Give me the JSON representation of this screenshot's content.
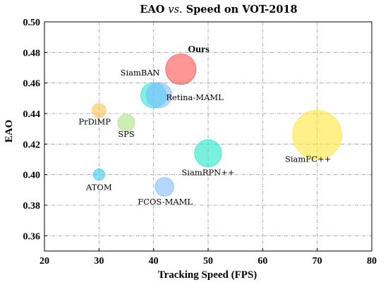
{
  "chart_data": {
    "type": "scatter",
    "title": "EAO vs. Speed on VOT-2018",
    "title_parts": {
      "pre": "EAO ",
      "vs": "vs.",
      "post": " Speed on VOT-2018"
    },
    "xlabel": "Tracking Speed (FPS)",
    "ylabel": "EAO",
    "xlim": [
      20,
      80
    ],
    "ylim": [
      0.35,
      0.5
    ],
    "xticks": [
      "20",
      "30",
      "40",
      "50",
      "60",
      "70",
      "80"
    ],
    "yticks": [
      "0.36",
      "0.38",
      "0.40",
      "0.42",
      "0.44",
      "0.46",
      "0.48",
      "0.50"
    ],
    "grid": true,
    "points": [
      {
        "name": "Ours",
        "x": 45,
        "y": 0.469,
        "size": 7.2,
        "color": "#ff4a4a",
        "bold": true
      },
      {
        "name": "SiamBAN",
        "x": 40,
        "y": 0.452,
        "size": 6.0,
        "color": "#22e6d6",
        "bold": false
      },
      {
        "name": "Retina-MAML",
        "x": 41,
        "y": 0.452,
        "size": 6.0,
        "color": "#7fb8ff",
        "bold": false
      },
      {
        "name": "PrDiMP",
        "x": 30,
        "y": 0.442,
        "size": 3.3,
        "color": "#ffc04d",
        "bold": false
      },
      {
        "name": "SPS",
        "x": 35,
        "y": 0.434,
        "size": 4.0,
        "color": "#a8e07a",
        "bold": false
      },
      {
        "name": "SiamFC++",
        "x": 70,
        "y": 0.426,
        "size": 11.6,
        "color": "#ffe533",
        "bold": false
      },
      {
        "name": "SiamRPN++",
        "x": 50,
        "y": 0.414,
        "size": 6.4,
        "color": "#1ee6c8",
        "bold": false
      },
      {
        "name": "ATOM",
        "x": 30,
        "y": 0.4,
        "size": 2.7,
        "color": "#33ccf0",
        "bold": false
      },
      {
        "name": "FCOS-MAML",
        "x": 42,
        "y": 0.392,
        "size": 4.4,
        "color": "#7fb8ff",
        "bold": false
      }
    ]
  }
}
